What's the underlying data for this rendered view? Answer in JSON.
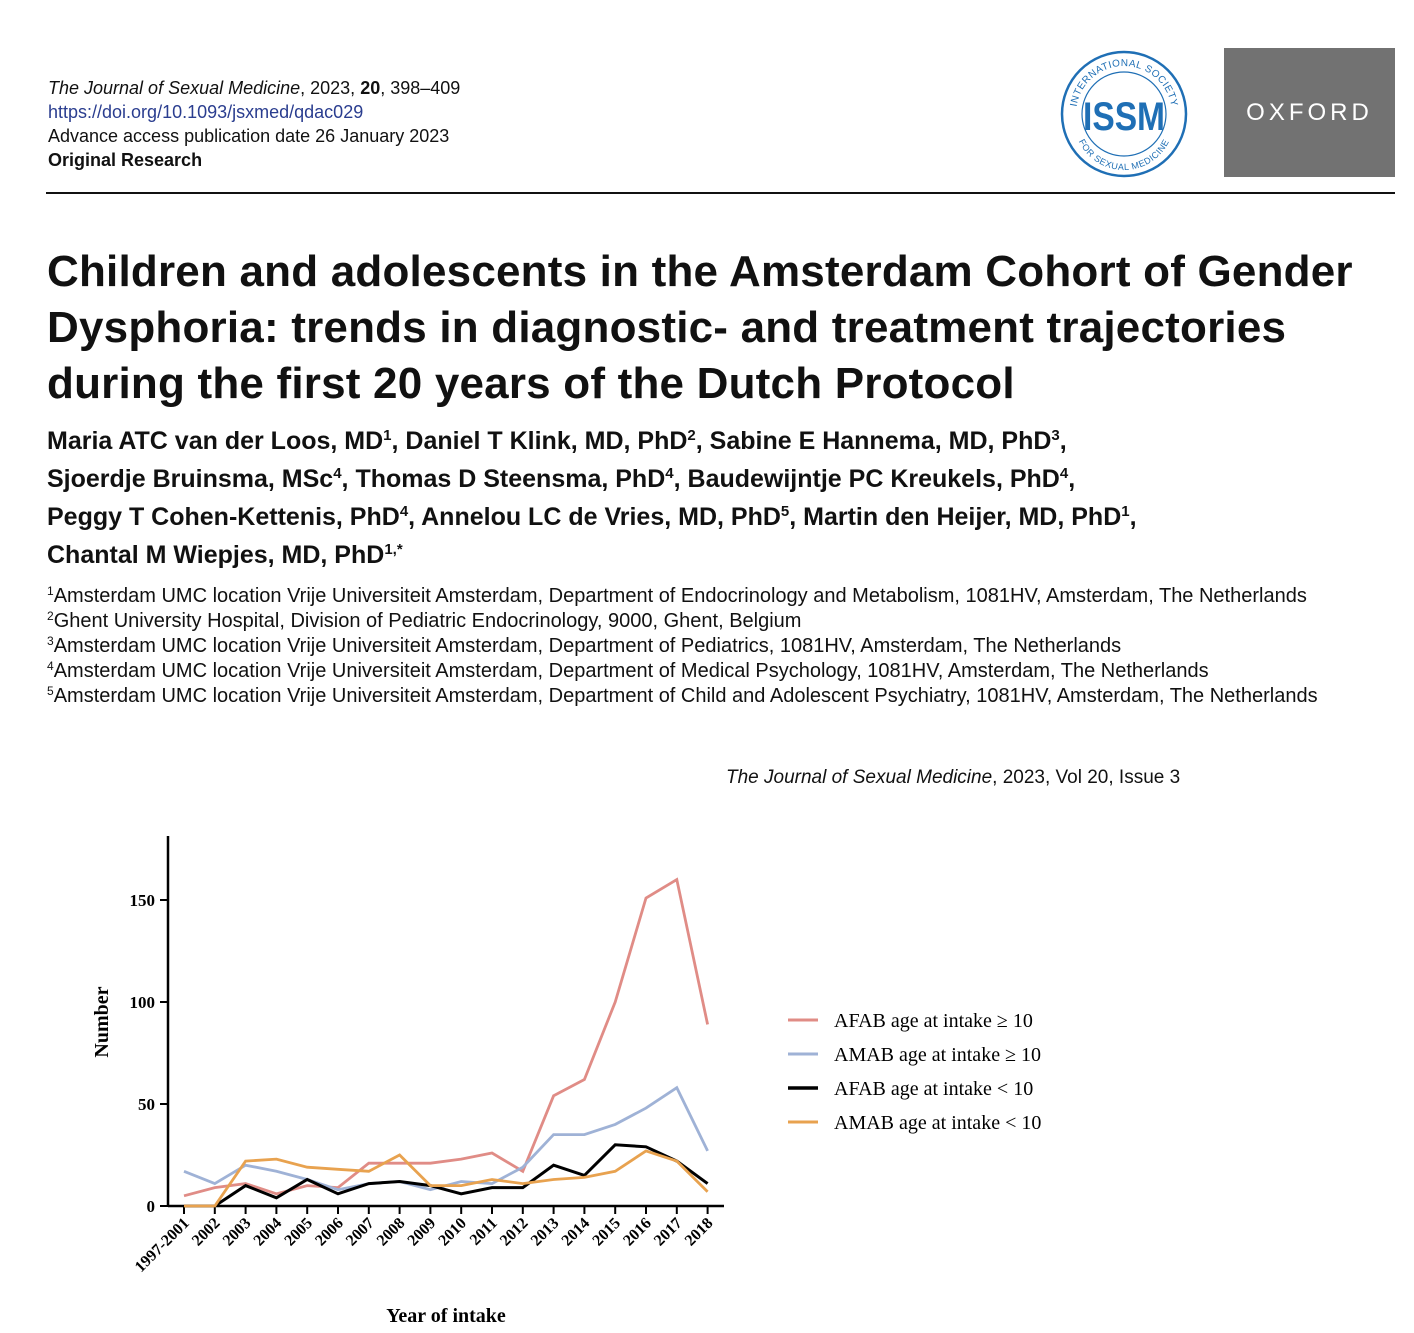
{
  "header": {
    "journal_name": "The Journal of Sexual Medicine",
    "citation_year": ", 2023, ",
    "volume": "20",
    "pages": ", 398–409",
    "doi": "https://doi.org/10.1093/jsxmed/qdac029",
    "advance_access": "Advance access publication date 26 January 2023",
    "article_type": "Original Research",
    "society_logo": {
      "ring_text_top": "INTERNATIONAL SOCIETY",
      "ring_text_bottom": "FOR SEXUAL MEDICINE",
      "acronym": "ISSM"
    },
    "publisher_logo": "OXFORD"
  },
  "article": {
    "title": "Children and adolescents in the Amsterdam Cohort of Gender Dysphoria: trends in diagnostic- and treatment trajectories during the first 20 years of the Dutch Protocol",
    "authors": [
      {
        "name": "Maria ATC van der Loos, MD",
        "aff": "1",
        "sep": ", "
      },
      {
        "name": "Daniel T Klink, MD, PhD",
        "aff": "2",
        "sep": ", "
      },
      {
        "name": "Sabine E Hannema, MD, PhD",
        "aff": "3",
        "sep": ", "
      },
      {
        "name": "Sjoerdje Bruinsma, MSc",
        "aff": "4",
        "sep": ", "
      },
      {
        "name": "Thomas D Steensma, PhD",
        "aff": "4",
        "sep": ", "
      },
      {
        "name": "Baudewijntje PC Kreukels, PhD",
        "aff": "4",
        "sep": ", "
      },
      {
        "name": "Peggy T Cohen-Kettenis, PhD",
        "aff": "4",
        "sep": ", "
      },
      {
        "name": "Annelou LC de Vries, MD, PhD",
        "aff": "5",
        "sep": ", "
      },
      {
        "name": "Martin den Heijer, MD, PhD",
        "aff": "1",
        "sep": ", "
      },
      {
        "name": "Chantal M Wiepjes, MD, PhD",
        "aff": "1,*",
        "sep": ""
      }
    ],
    "affiliations": [
      {
        "num": "1",
        "text": "Amsterdam UMC location Vrije Universiteit Amsterdam, Department of Endocrinology and Metabolism, 1081HV, Amsterdam, The Netherlands"
      },
      {
        "num": "2",
        "text": "Ghent University Hospital, Division of Pediatric Endocrinology, 9000, Ghent, Belgium"
      },
      {
        "num": "3",
        "text": "Amsterdam UMC location Vrije Universiteit Amsterdam, Department of Pediatrics, 1081HV, Amsterdam, The Netherlands"
      },
      {
        "num": "4",
        "text": "Amsterdam UMC location Vrije Universiteit Amsterdam, Department of Medical Psychology, 1081HV, Amsterdam, The Netherlands"
      },
      {
        "num": "5",
        "text": "Amsterdam UMC location Vrije Universiteit Amsterdam, Department of Child and Adolescent Psychiatry, 1081HV, Amsterdam, The Netherlands"
      }
    ],
    "issue_line": {
      "journal_name": "The Journal of Sexual Medicine",
      "rest": ", 2023, Vol 20, Issue 3"
    }
  },
  "chart_data": {
    "type": "line",
    "title": "",
    "xlabel": "Year of intake",
    "ylabel": "Number",
    "ylim": [
      0,
      180
    ],
    "yticks": [
      0,
      50,
      100,
      150
    ],
    "categories": [
      "1997-2001",
      "2002",
      "2003",
      "2004",
      "2005",
      "2006",
      "2007",
      "2008",
      "2009",
      "2010",
      "2011",
      "2012",
      "2013",
      "2014",
      "2015",
      "2016",
      "2017",
      "2018"
    ],
    "legend_position": "right",
    "series": [
      {
        "name": "AFAB age at intake ≥ 10",
        "color": "#e08c86",
        "values": [
          5,
          9,
          11,
          6,
          10,
          9,
          21,
          21,
          21,
          23,
          26,
          17,
          54,
          62,
          100,
          151,
          160,
          89
        ]
      },
      {
        "name": "AMAB age at intake ≥ 10",
        "color": "#9fb2d6",
        "values": [
          17,
          11,
          20,
          17,
          13,
          8,
          11,
          12,
          8,
          12,
          11,
          19,
          35,
          35,
          40,
          48,
          58,
          27
        ]
      },
      {
        "name": "AFAB age at intake < 10",
        "color": "#000000",
        "values": [
          0,
          0,
          10,
          4,
          13,
          6,
          11,
          12,
          10,
          6,
          9,
          9,
          20,
          15,
          30,
          29,
          22,
          11
        ]
      },
      {
        "name": "AMAB age at intake < 10",
        "color": "#e8a24f",
        "values": [
          0,
          0,
          22,
          23,
          19,
          18,
          17,
          25,
          10,
          10,
          13,
          11,
          13,
          14,
          17,
          27,
          22,
          7
        ]
      }
    ]
  }
}
